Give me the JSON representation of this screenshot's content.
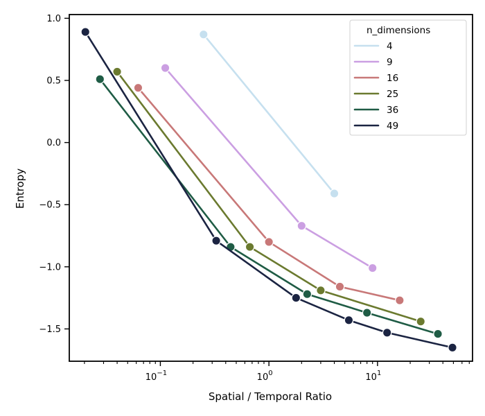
{
  "chart_data": {
    "type": "line",
    "xlabel": "Spatial / Temporal Ratio",
    "ylabel": "Entropy",
    "x_scale": "log",
    "xlim": [
      0.0145,
      75
    ],
    "ylim": [
      -1.76,
      1.03
    ],
    "y_ticks": [
      1.0,
      0.5,
      0.0,
      -0.5,
      -1.0,
      -1.5
    ],
    "y_tick_labels": [
      "1.0",
      "0.5",
      "0.0",
      "−0.5",
      "−1.0",
      "−1.5"
    ],
    "x_major_ticks": [
      0.1,
      1,
      10
    ],
    "x_tick_labels": [
      {
        "base": "10",
        "exp": "−1"
      },
      {
        "base": "10",
        "exp": "0"
      },
      {
        "base": "10",
        "exp": "1"
      }
    ],
    "grid": false,
    "legend": {
      "title": "n_dimensions",
      "placement": "top-right"
    },
    "series": [
      {
        "name": "4",
        "color": "#c6e0ef",
        "x": [
          0.25,
          4.0
        ],
        "y": [
          0.87,
          -0.41
        ]
      },
      {
        "name": "9",
        "color": "#cb9fe2",
        "x": [
          0.111,
          2.0,
          9.0
        ],
        "y": [
          0.6,
          -0.67,
          -1.01
        ]
      },
      {
        "name": "16",
        "color": "#c87878",
        "x": [
          0.0625,
          1.0,
          4.5,
          16.0
        ],
        "y": [
          0.44,
          -0.8,
          -1.16,
          -1.27
        ]
      },
      {
        "name": "25",
        "color": "#6b7a2f",
        "x": [
          0.04,
          0.667,
          3.0,
          25.0
        ],
        "y": [
          0.57,
          -0.84,
          -1.19,
          -1.44
        ]
      },
      {
        "name": "36",
        "color": "#1f5c45",
        "x": [
          0.0278,
          0.444,
          2.25,
          8.0,
          36.0
        ],
        "y": [
          0.51,
          -0.84,
          -1.22,
          -1.37,
          -1.54
        ]
      },
      {
        "name": "49",
        "color": "#1b2442",
        "x": [
          0.0204,
          0.327,
          1.778,
          5.444,
          12.25,
          49.0
        ],
        "y": [
          0.89,
          -0.79,
          -1.25,
          -1.43,
          -1.53,
          -1.65
        ]
      }
    ]
  }
}
